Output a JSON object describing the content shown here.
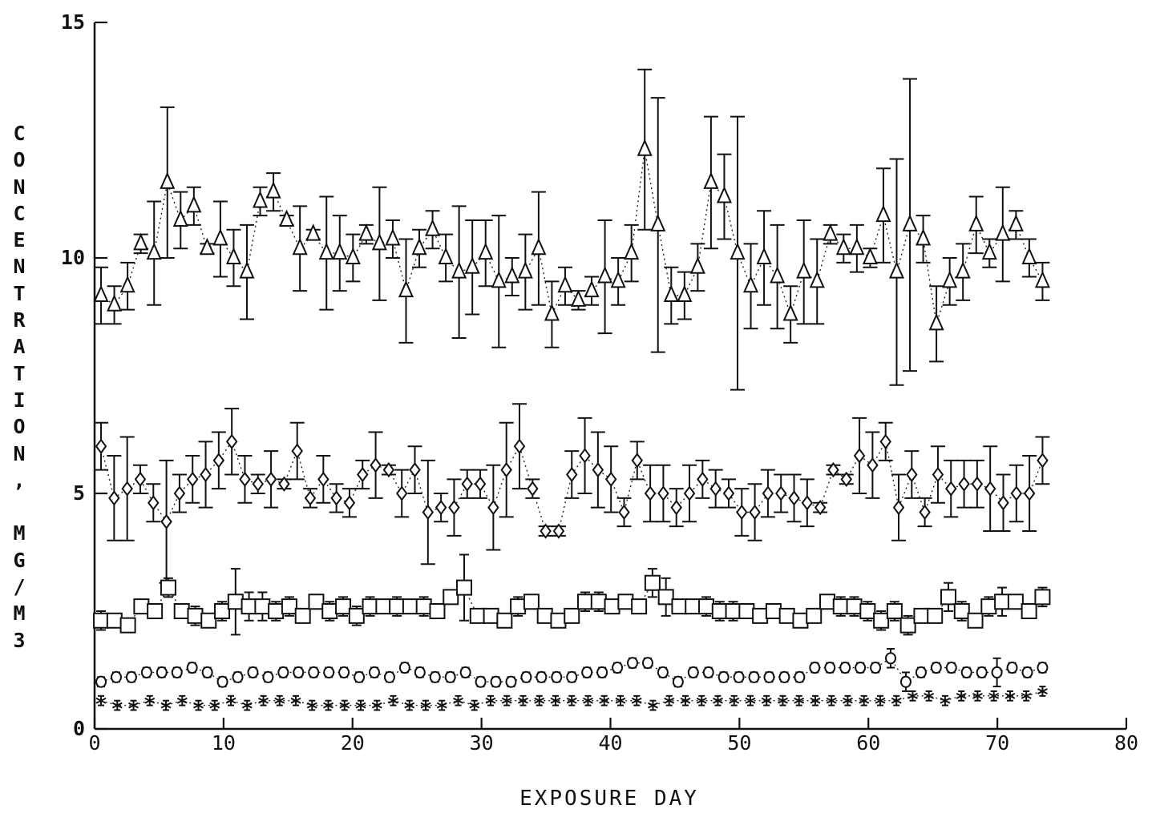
{
  "chart_data": {
    "type": "scatter",
    "title": "",
    "xlabel": "EXPOSURE DAY",
    "ylabel": "CONCENTRATION, MG/M3",
    "xlim": [
      0,
      80
    ],
    "ylim": [
      0,
      15
    ],
    "xticks": [
      "0",
      "10",
      "20",
      "30",
      "40",
      "50",
      "60",
      "70",
      "80"
    ],
    "yticks": [
      "0",
      "5",
      "10",
      "15"
    ],
    "grid": false,
    "legend": "none",
    "error_bars": true,
    "days": [
      0.5,
      1.4,
      2.3,
      3.2,
      4.1,
      5.0,
      5.9,
      6.8,
      7.7,
      8.6,
      9.5,
      10.4,
      11.3,
      12.2,
      13.1,
      14.0,
      14.9,
      15.8,
      16.7,
      17.6,
      18.5,
      19.4,
      20.3,
      21.2,
      22.1,
      23.0,
      23.9,
      24.8,
      25.7,
      26.6,
      27.5,
      28.4,
      29.3,
      30.2,
      31.1,
      32.0,
      32.9,
      33.8,
      34.7,
      35.6,
      36.5,
      37.4,
      38.3,
      39.2,
      40.1,
      41.0,
      41.9,
      42.8,
      43.7,
      44.6,
      45.5,
      46.4,
      47.3,
      48.2,
      49.1,
      50.0,
      50.9,
      51.8,
      52.7,
      53.6,
      54.5,
      55.4,
      56.3,
      57.2,
      58.1,
      59.0,
      59.9,
      60.8,
      61.7,
      62.6,
      63.5,
      64.4,
      65.3,
      66.2,
      67.1,
      68.0,
      68.9,
      69.8,
      70.7,
      71.6,
      72.5,
      73.4
    ],
    "series": [
      {
        "marker": "triangle",
        "values": [
          9.2,
          9.0,
          9.4,
          10.3,
          10.1,
          11.6,
          10.8,
          11.1,
          10.2,
          10.4,
          10.0,
          9.7,
          11.2,
          11.4,
          10.8,
          10.2,
          10.5,
          10.1,
          10.1,
          10.0,
          10.5,
          10.3,
          10.4,
          9.3,
          10.2,
          10.6,
          10.0,
          9.7,
          9.8,
          10.1,
          9.5,
          9.6,
          9.7,
          10.2,
          8.8,
          9.4,
          9.1,
          9.3,
          9.6,
          9.5,
          10.1,
          12.3,
          10.7,
          9.2,
          9.2,
          9.8,
          11.6,
          11.3,
          10.1,
          9.4,
          10.0,
          9.6,
          8.8,
          9.7,
          9.5,
          10.5,
          10.2,
          10.2,
          10.0,
          10.9,
          9.7,
          10.7,
          10.4,
          8.6,
          9.5,
          9.7,
          10.7,
          10.1,
          10.5,
          10.7,
          10.0,
          9.5
        ],
        "errors": [
          0.6,
          0.4,
          0.5,
          0.2,
          1.1,
          1.6,
          0.6,
          0.4,
          0.1,
          0.8,
          0.6,
          1.0,
          0.3,
          0.4,
          0.1,
          0.9,
          0.1,
          1.2,
          0.8,
          0.5,
          0.2,
          1.2,
          0.4,
          1.1,
          0.4,
          0.4,
          0.5,
          1.4,
          1.0,
          0.7,
          1.4,
          0.4,
          0.8,
          1.2,
          0.7,
          0.4,
          0.2,
          0.3,
          1.2,
          0.5,
          0.6,
          1.7,
          2.7,
          0.6,
          0.5,
          0.5,
          1.4,
          0.9,
          2.9,
          0.9,
          1.0,
          1.1,
          0.6,
          1.1,
          0.9,
          0.2,
          0.3,
          0.5,
          0.2,
          1.0,
          2.4,
          3.1,
          0.5,
          0.8,
          0.5,
          0.6,
          0.6,
          0.3,
          1.0,
          0.3,
          0.4,
          0.4
        ]
      },
      {
        "marker": "diamond",
        "values": [
          6.0,
          4.9,
          5.1,
          5.3,
          4.8,
          4.4,
          5.0,
          5.3,
          5.4,
          5.7,
          6.1,
          5.3,
          5.2,
          5.3,
          5.2,
          5.9,
          4.9,
          5.3,
          4.9,
          4.8,
          5.4,
          5.6,
          5.5,
          5.0,
          5.5,
          4.6,
          4.7,
          4.7,
          5.2,
          5.2,
          4.7,
          5.5,
          6.0,
          5.1,
          4.2,
          4.2,
          5.4,
          5.8,
          5.5,
          5.3,
          4.6,
          5.7,
          5.0,
          5.0,
          4.7,
          5.0,
          5.3,
          5.1,
          5.0,
          4.6,
          4.6,
          5.0,
          5.0,
          4.9,
          4.8,
          4.7,
          5.5,
          5.3,
          5.8,
          5.6,
          6.1,
          4.7,
          5.4,
          4.6,
          5.4,
          5.1,
          5.2,
          5.2,
          5.1,
          4.8,
          5.0,
          5.0,
          5.7
        ],
        "errors": [
          0.5,
          0.9,
          1.1,
          0.3,
          0.4,
          1.3,
          0.4,
          0.5,
          0.7,
          0.6,
          0.7,
          0.5,
          0.2,
          0.6,
          0.1,
          0.6,
          0.2,
          0.5,
          0.3,
          0.3,
          0.3,
          0.7,
          0.1,
          0.5,
          0.5,
          1.1,
          0.3,
          0.6,
          0.3,
          0.3,
          0.9,
          1.0,
          0.9,
          0.2,
          0.1,
          0.1,
          0.5,
          0.8,
          0.8,
          0.7,
          0.3,
          0.4,
          0.6,
          0.6,
          0.4,
          0.6,
          0.4,
          0.4,
          0.3,
          0.5,
          0.6,
          0.5,
          0.4,
          0.5,
          0.5,
          0.1,
          0.1,
          0.1,
          0.8,
          0.7,
          0.4,
          0.7,
          0.5,
          0.3,
          0.6,
          0.6,
          0.5,
          0.5,
          0.9,
          0.6,
          0.6,
          0.8,
          0.5
        ]
      },
      {
        "marker": "square",
        "values": [
          2.3,
          2.3,
          2.2,
          2.6,
          2.5,
          3.0,
          2.5,
          2.4,
          2.3,
          2.5,
          2.7,
          2.6,
          2.6,
          2.5,
          2.6,
          2.4,
          2.7,
          2.5,
          2.6,
          2.4,
          2.6,
          2.6,
          2.6,
          2.6,
          2.6,
          2.5,
          2.8,
          3.0,
          2.4,
          2.4,
          2.3,
          2.6,
          2.7,
          2.4,
          2.3,
          2.4,
          2.7,
          2.7,
          2.6,
          2.7,
          2.6,
          3.1,
          2.8,
          2.6,
          2.6,
          2.6,
          2.5,
          2.5,
          2.5,
          2.4,
          2.5,
          2.4,
          2.3,
          2.4,
          2.7,
          2.6,
          2.6,
          2.5,
          2.3,
          2.5,
          2.2,
          2.4,
          2.4,
          2.8,
          2.5,
          2.3,
          2.6,
          2.7,
          2.7,
          2.5,
          2.8
        ],
        "errors": [
          0.2,
          0.1,
          0.1,
          0.1,
          0.1,
          0.2,
          0.1,
          0.2,
          0.1,
          0.2,
          0.7,
          0.3,
          0.3,
          0.2,
          0.2,
          0.1,
          0.1,
          0.2,
          0.2,
          0.2,
          0.2,
          0.1,
          0.2,
          0.1,
          0.2,
          0.1,
          0.1,
          0.7,
          0.1,
          0.1,
          0.1,
          0.2,
          0.1,
          0.1,
          0.1,
          0.1,
          0.2,
          0.2,
          0.1,
          0.1,
          0.1,
          0.3,
          0.4,
          0.1,
          0.1,
          0.2,
          0.2,
          0.2,
          0.1,
          0.1,
          0.1,
          0.1,
          0.1,
          0.1,
          0.1,
          0.2,
          0.2,
          0.2,
          0.2,
          0.2,
          0.2,
          0.1,
          0.1,
          0.3,
          0.2,
          0.1,
          0.2,
          0.3,
          0.1,
          0.1,
          0.2
        ]
      },
      {
        "marker": "circle",
        "values": [
          1.0,
          1.1,
          1.1,
          1.2,
          1.2,
          1.2,
          1.3,
          1.2,
          1.0,
          1.1,
          1.2,
          1.1,
          1.2,
          1.2,
          1.2,
          1.2,
          1.2,
          1.1,
          1.2,
          1.1,
          1.3,
          1.2,
          1.1,
          1.1,
          1.2,
          1.0,
          1.0,
          1.0,
          1.1,
          1.1,
          1.1,
          1.1,
          1.2,
          1.2,
          1.3,
          1.4,
          1.4,
          1.2,
          1.0,
          1.2,
          1.2,
          1.1,
          1.1,
          1.1,
          1.1,
          1.1,
          1.1,
          1.3,
          1.3,
          1.3,
          1.3,
          1.3,
          1.5,
          1.0,
          1.2,
          1.3,
          1.3,
          1.2,
          1.2,
          1.2,
          1.3,
          1.2,
          1.3
        ],
        "errors": [
          0.1,
          0.1,
          0.1,
          0.1,
          0.1,
          0.1,
          0.1,
          0.1,
          0.1,
          0.1,
          0.1,
          0.1,
          0.1,
          0.1,
          0.1,
          0.1,
          0.1,
          0.1,
          0.1,
          0.1,
          0.1,
          0.1,
          0.1,
          0.1,
          0.1,
          0.1,
          0.1,
          0.1,
          0.1,
          0.1,
          0.1,
          0.1,
          0.1,
          0.1,
          0.1,
          0.1,
          0.1,
          0.1,
          0.1,
          0.1,
          0.1,
          0.1,
          0.1,
          0.1,
          0.1,
          0.1,
          0.1,
          0.1,
          0.1,
          0.1,
          0.1,
          0.1,
          0.2,
          0.2,
          0.1,
          0.1,
          0.1,
          0.1,
          0.1,
          0.3,
          0.1,
          0.1,
          0.1
        ]
      },
      {
        "marker": "cross",
        "values": [
          0.6,
          0.5,
          0.5,
          0.6,
          0.5,
          0.6,
          0.5,
          0.5,
          0.6,
          0.5,
          0.6,
          0.6,
          0.6,
          0.5,
          0.5,
          0.5,
          0.5,
          0.5,
          0.6,
          0.5,
          0.5,
          0.5,
          0.6,
          0.5,
          0.6,
          0.6,
          0.6,
          0.6,
          0.6,
          0.6,
          0.6,
          0.6,
          0.6,
          0.6,
          0.5,
          0.6,
          0.6,
          0.6,
          0.6,
          0.6,
          0.6,
          0.6,
          0.6,
          0.6,
          0.6,
          0.6,
          0.6,
          0.6,
          0.6,
          0.6,
          0.7,
          0.7,
          0.6,
          0.7,
          0.7,
          0.7,
          0.7,
          0.7,
          0.8
        ],
        "errors": [
          0.1,
          0.1,
          0.1,
          0.1,
          0.1,
          0.1,
          0.1,
          0.1,
          0.1,
          0.1,
          0.1,
          0.1,
          0.1,
          0.1,
          0.1,
          0.1,
          0.1,
          0.1,
          0.1,
          0.1,
          0.1,
          0.1,
          0.1,
          0.1,
          0.1,
          0.1,
          0.1,
          0.1,
          0.1,
          0.1,
          0.1,
          0.1,
          0.1,
          0.1,
          0.1,
          0.1,
          0.1,
          0.1,
          0.1,
          0.1,
          0.1,
          0.1,
          0.1,
          0.1,
          0.1,
          0.1,
          0.1,
          0.1,
          0.1,
          0.1,
          0.1,
          0.1,
          0.1,
          0.1,
          0.1,
          0.1,
          0.1,
          0.1,
          0.1
        ]
      }
    ]
  }
}
